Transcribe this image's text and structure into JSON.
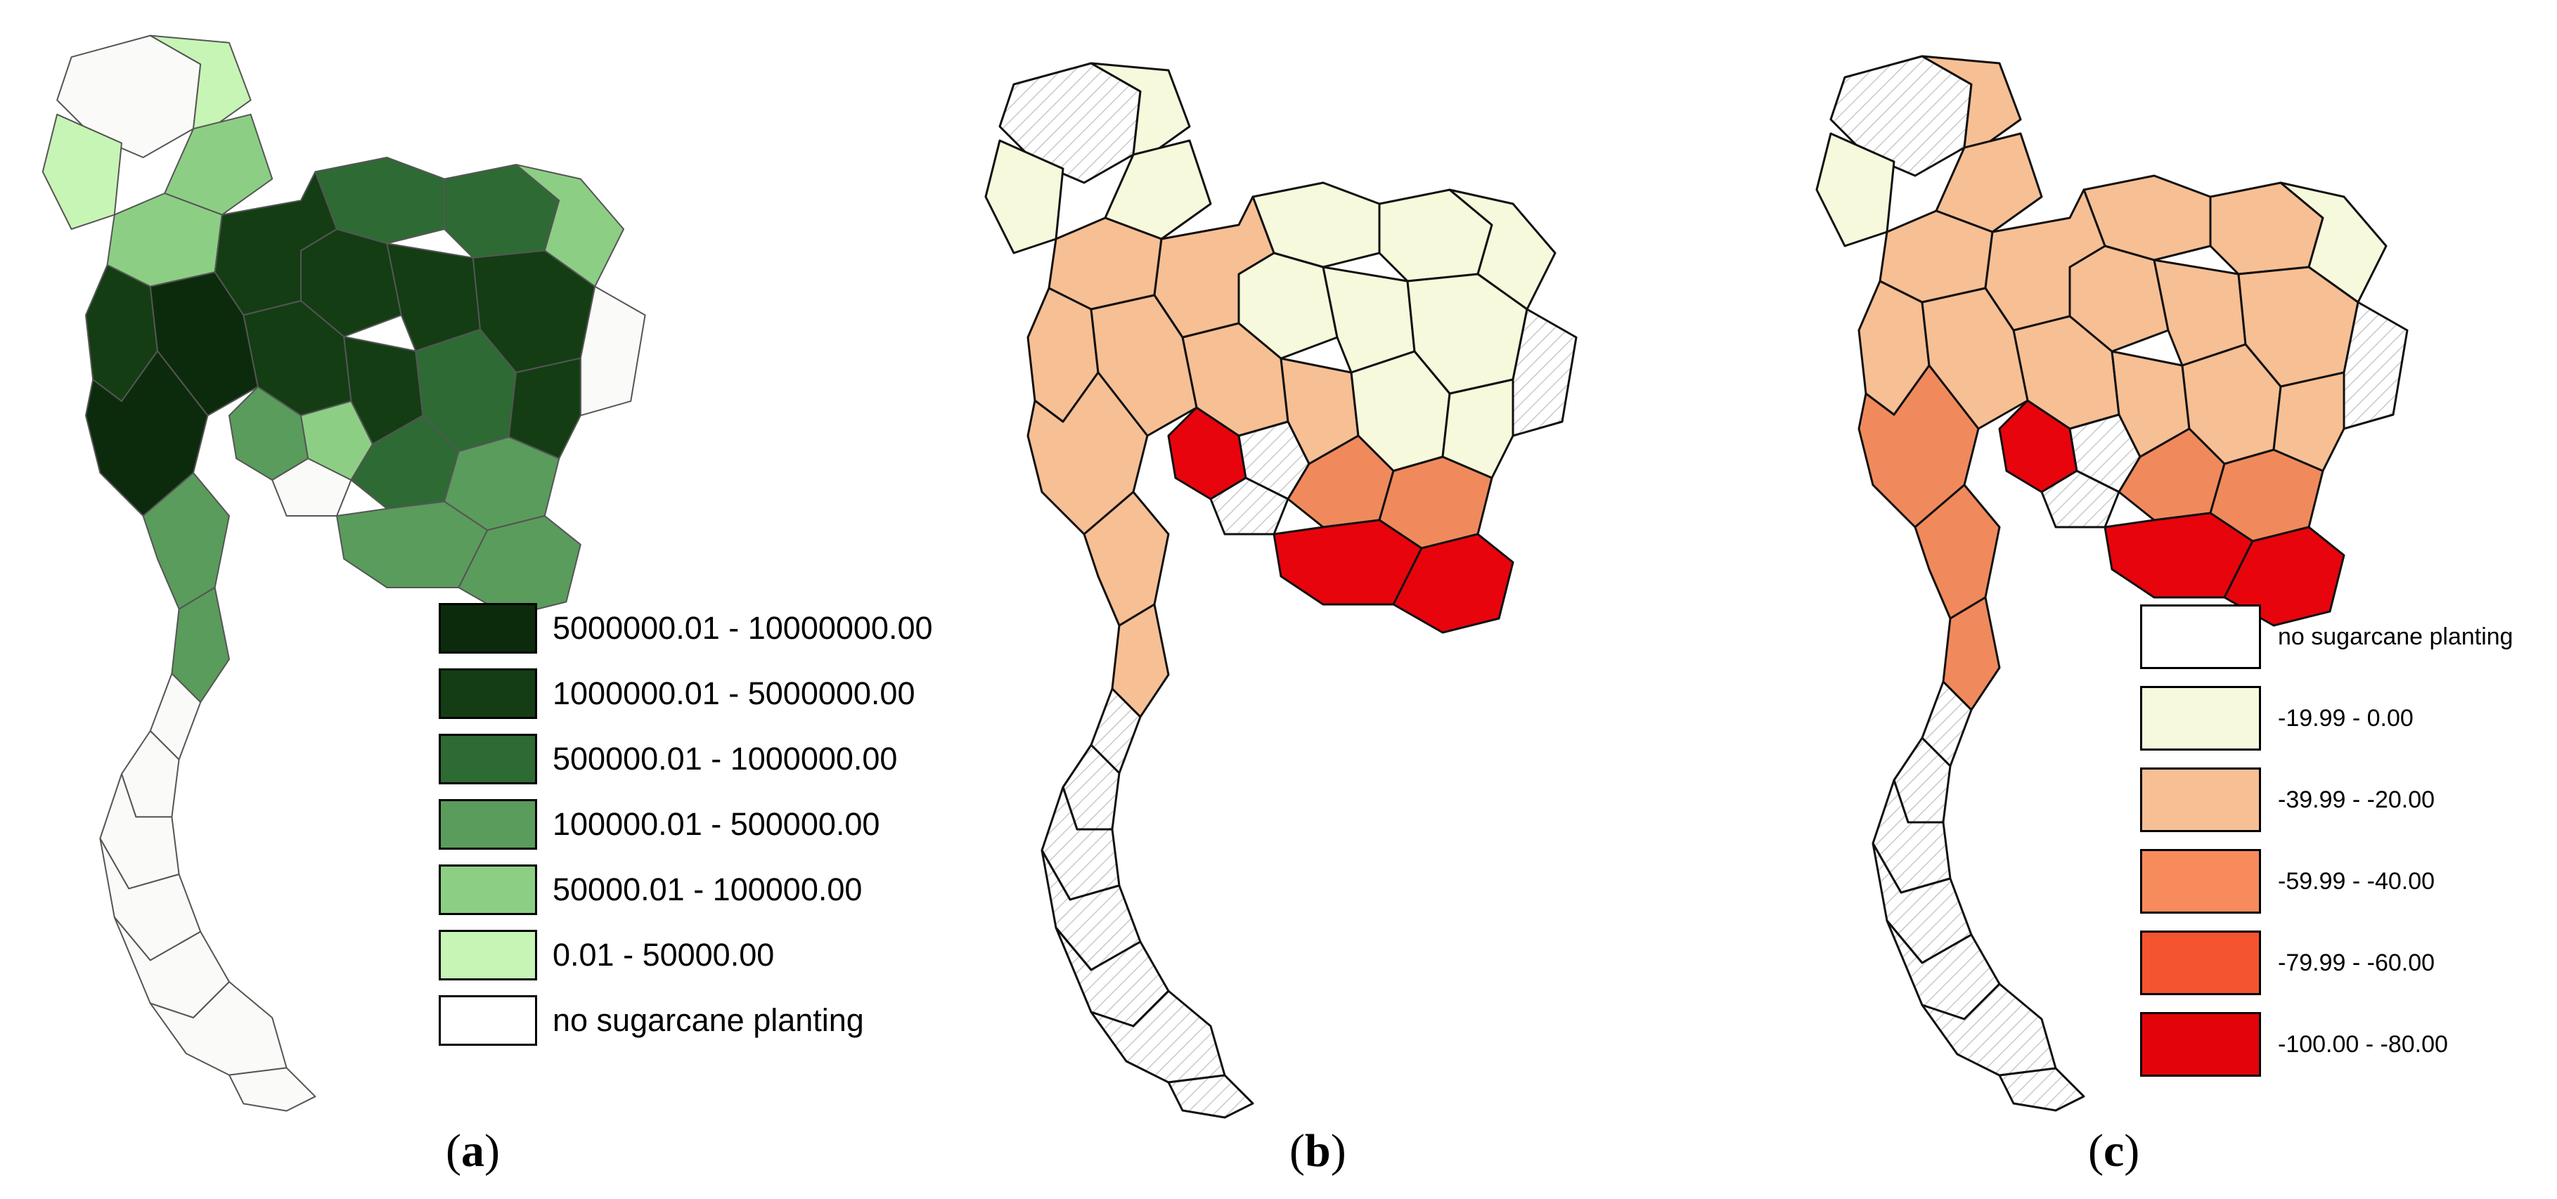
{
  "panels": [
    {
      "id": "a",
      "caption_letter": "a",
      "fill_colors": [
        "#0c2b0c",
        "#143d14",
        "#2e6a33",
        "#5a9c5c",
        "#8ccf84",
        "#c7f5b5",
        "#fafaf8"
      ],
      "legend": [
        {
          "label": "5000000.01 - 10000000.00",
          "color": "#0c2b0c"
        },
        {
          "label": "1000000.01 - 5000000.00",
          "color": "#143d14"
        },
        {
          "label": "500000.01 - 1000000.00",
          "color": "#2e6a33"
        },
        {
          "label": "100000.01 - 500000.00",
          "color": "#5a9c5c"
        },
        {
          "label": "50000.01 - 100000.00",
          "color": "#8ccf84"
        },
        {
          "label": "0.01 - 50000.00",
          "color": "#c7f5b5"
        },
        {
          "label": "no sugarcane planting",
          "color": "#ffffff"
        }
      ]
    },
    {
      "id": "b",
      "caption_letter": "b",
      "fill_colors": [
        "#f7f9dc",
        "#f7bf94",
        "#f08a5c",
        "#e8040c",
        "#ffffff"
      ]
    },
    {
      "id": "c",
      "caption_letter": "c",
      "fill_colors": [
        "#f7f9dc",
        "#f7bf94",
        "#f08a5c",
        "#e8040c",
        "#ffffff"
      ],
      "legend": [
        {
          "label": "no sugarcane planting",
          "color": "#ffffff"
        },
        {
          "label": "-19.99 - 0.00",
          "color": "#f7f9dc"
        },
        {
          "label": "-39.99 - -20.00",
          "color": "#f7bf94"
        },
        {
          "label": "-59.99 - -40.00",
          "color": "#f78b5c"
        },
        {
          "label": "-79.99 - -60.00",
          "color": "#f4542f"
        },
        {
          "label": "-100.00 - -80.00",
          "color": "#e3040b"
        }
      ]
    }
  ]
}
